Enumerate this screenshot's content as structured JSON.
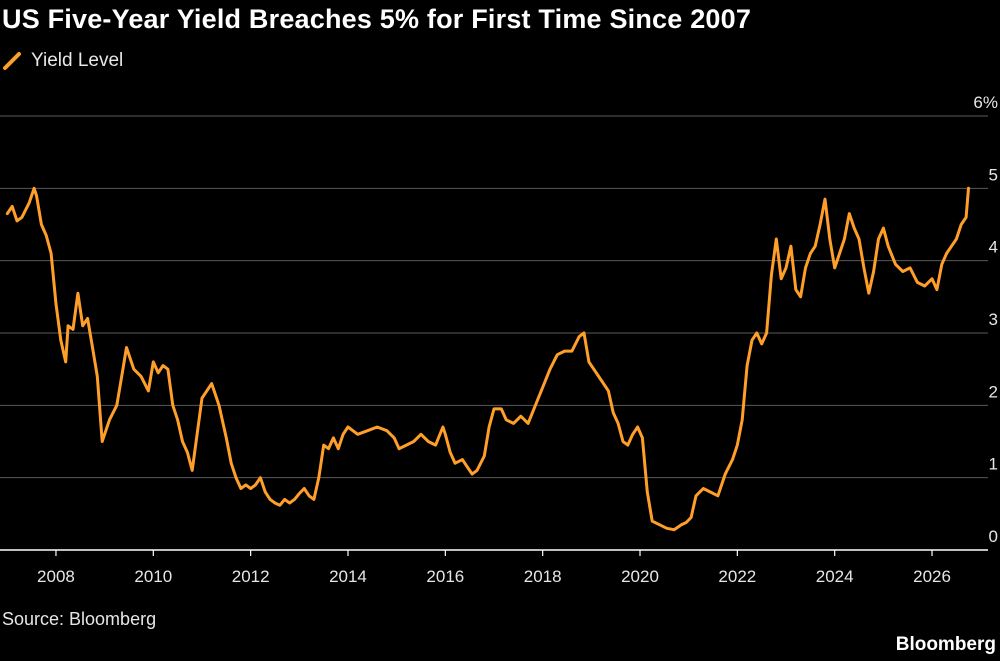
{
  "chart_data": {
    "type": "line",
    "title": "US Five-Year Yield Breaches 5% for First Time Since 2007",
    "series": [
      {
        "name": "Yield Level",
        "color": "#ff9f2a",
        "points": [
          [
            2007.0,
            4.65
          ],
          [
            2007.1,
            4.75
          ],
          [
            2007.2,
            4.55
          ],
          [
            2007.3,
            4.6
          ],
          [
            2007.45,
            4.8
          ],
          [
            2007.55,
            5.0
          ],
          [
            2007.6,
            4.9
          ],
          [
            2007.7,
            4.5
          ],
          [
            2007.8,
            4.35
          ],
          [
            2007.9,
            4.1
          ],
          [
            2008.0,
            3.4
          ],
          [
            2008.1,
            2.9
          ],
          [
            2008.2,
            2.6
          ],
          [
            2008.25,
            3.1
          ],
          [
            2008.35,
            3.05
          ],
          [
            2008.45,
            3.55
          ],
          [
            2008.55,
            3.1
          ],
          [
            2008.65,
            3.2
          ],
          [
            2008.75,
            2.8
          ],
          [
            2008.85,
            2.4
          ],
          [
            2008.95,
            1.5
          ],
          [
            2009.0,
            1.6
          ],
          [
            2009.1,
            1.8
          ],
          [
            2009.25,
            2.0
          ],
          [
            2009.35,
            2.4
          ],
          [
            2009.45,
            2.8
          ],
          [
            2009.6,
            2.5
          ],
          [
            2009.75,
            2.4
          ],
          [
            2009.9,
            2.2
          ],
          [
            2010.0,
            2.6
          ],
          [
            2010.1,
            2.45
          ],
          [
            2010.2,
            2.55
          ],
          [
            2010.3,
            2.5
          ],
          [
            2010.4,
            2.0
          ],
          [
            2010.5,
            1.8
          ],
          [
            2010.6,
            1.5
          ],
          [
            2010.7,
            1.35
          ],
          [
            2010.8,
            1.1
          ],
          [
            2010.9,
            1.6
          ],
          [
            2011.0,
            2.1
          ],
          [
            2011.1,
            2.2
          ],
          [
            2011.2,
            2.3
          ],
          [
            2011.35,
            2.0
          ],
          [
            2011.5,
            1.55
          ],
          [
            2011.6,
            1.2
          ],
          [
            2011.7,
            1.0
          ],
          [
            2011.8,
            0.85
          ],
          [
            2011.9,
            0.9
          ],
          [
            2012.0,
            0.85
          ],
          [
            2012.1,
            0.9
          ],
          [
            2012.2,
            1.0
          ],
          [
            2012.3,
            0.8
          ],
          [
            2012.4,
            0.7
          ],
          [
            2012.5,
            0.65
          ],
          [
            2012.6,
            0.62
          ],
          [
            2012.7,
            0.7
          ],
          [
            2012.8,
            0.65
          ],
          [
            2012.9,
            0.7
          ],
          [
            2013.0,
            0.78
          ],
          [
            2013.1,
            0.85
          ],
          [
            2013.2,
            0.75
          ],
          [
            2013.3,
            0.7
          ],
          [
            2013.4,
            1.0
          ],
          [
            2013.5,
            1.45
          ],
          [
            2013.6,
            1.4
          ],
          [
            2013.7,
            1.55
          ],
          [
            2013.8,
            1.4
          ],
          [
            2013.9,
            1.6
          ],
          [
            2014.0,
            1.7
          ],
          [
            2014.2,
            1.6
          ],
          [
            2014.4,
            1.65
          ],
          [
            2014.6,
            1.7
          ],
          [
            2014.8,
            1.65
          ],
          [
            2014.95,
            1.55
          ],
          [
            2015.05,
            1.4
          ],
          [
            2015.2,
            1.45
          ],
          [
            2015.35,
            1.5
          ],
          [
            2015.5,
            1.6
          ],
          [
            2015.65,
            1.5
          ],
          [
            2015.8,
            1.45
          ],
          [
            2015.95,
            1.7
          ],
          [
            2016.0,
            1.6
          ],
          [
            2016.1,
            1.35
          ],
          [
            2016.2,
            1.2
          ],
          [
            2016.35,
            1.25
          ],
          [
            2016.45,
            1.15
          ],
          [
            2016.55,
            1.05
          ],
          [
            2016.65,
            1.1
          ],
          [
            2016.8,
            1.3
          ],
          [
            2016.9,
            1.7
          ],
          [
            2017.0,
            1.95
          ],
          [
            2017.15,
            1.95
          ],
          [
            2017.25,
            1.8
          ],
          [
            2017.4,
            1.75
          ],
          [
            2017.55,
            1.85
          ],
          [
            2017.7,
            1.75
          ],
          [
            2017.85,
            2.0
          ],
          [
            2018.0,
            2.25
          ],
          [
            2018.15,
            2.5
          ],
          [
            2018.3,
            2.7
          ],
          [
            2018.45,
            2.75
          ],
          [
            2018.6,
            2.75
          ],
          [
            2018.75,
            2.95
          ],
          [
            2018.85,
            3.0
          ],
          [
            2018.95,
            2.6
          ],
          [
            2019.05,
            2.5
          ],
          [
            2019.2,
            2.35
          ],
          [
            2019.35,
            2.2
          ],
          [
            2019.45,
            1.9
          ],
          [
            2019.55,
            1.75
          ],
          [
            2019.65,
            1.5
          ],
          [
            2019.75,
            1.45
          ],
          [
            2019.85,
            1.6
          ],
          [
            2019.95,
            1.7
          ],
          [
            2020.05,
            1.55
          ],
          [
            2020.15,
            0.8
          ],
          [
            2020.25,
            0.4
          ],
          [
            2020.4,
            0.35
          ],
          [
            2020.55,
            0.3
          ],
          [
            2020.7,
            0.28
          ],
          [
            2020.85,
            0.35
          ],
          [
            2020.95,
            0.38
          ],
          [
            2021.05,
            0.45
          ],
          [
            2021.15,
            0.75
          ],
          [
            2021.3,
            0.85
          ],
          [
            2021.45,
            0.8
          ],
          [
            2021.6,
            0.75
          ],
          [
            2021.75,
            1.05
          ],
          [
            2021.9,
            1.25
          ],
          [
            2022.0,
            1.45
          ],
          [
            2022.1,
            1.8
          ],
          [
            2022.2,
            2.55
          ],
          [
            2022.3,
            2.9
          ],
          [
            2022.4,
            3.0
          ],
          [
            2022.5,
            2.85
          ],
          [
            2022.6,
            3.0
          ],
          [
            2022.7,
            3.8
          ],
          [
            2022.8,
            4.3
          ],
          [
            2022.9,
            3.75
          ],
          [
            2023.0,
            3.9
          ],
          [
            2023.1,
            4.2
          ],
          [
            2023.2,
            3.6
          ],
          [
            2023.3,
            3.5
          ],
          [
            2023.4,
            3.9
          ],
          [
            2023.5,
            4.1
          ],
          [
            2023.6,
            4.2
          ],
          [
            2023.7,
            4.5
          ],
          [
            2023.8,
            4.85
          ],
          [
            2023.9,
            4.3
          ],
          [
            2024.0,
            3.9
          ],
          [
            2024.1,
            4.1
          ],
          [
            2024.2,
            4.3
          ],
          [
            2024.3,
            4.65
          ],
          [
            2024.4,
            4.45
          ],
          [
            2024.5,
            4.3
          ],
          [
            2024.6,
            3.9
          ],
          [
            2024.7,
            3.55
          ],
          [
            2024.8,
            3.85
          ],
          [
            2024.9,
            4.3
          ],
          [
            2025.0,
            4.45
          ],
          [
            2025.1,
            4.2
          ],
          [
            2025.25,
            3.95
          ],
          [
            2025.4,
            3.85
          ],
          [
            2025.55,
            3.9
          ],
          [
            2025.7,
            3.7
          ],
          [
            2025.85,
            3.65
          ],
          [
            2026.0,
            3.75
          ],
          [
            2026.1,
            3.6
          ],
          [
            2026.2,
            3.95
          ],
          [
            2026.3,
            4.1
          ],
          [
            2026.4,
            4.2
          ],
          [
            2026.5,
            4.3
          ],
          [
            2026.6,
            4.5
          ],
          [
            2026.7,
            4.6
          ],
          [
            2026.75,
            5.0
          ]
        ]
      }
    ],
    "x_ticks": [
      "2008",
      "2010",
      "2012",
      "2014",
      "2016",
      "2018",
      "2020",
      "2022",
      "2024",
      "2026"
    ],
    "y_ticks": [
      "0",
      "1",
      "2",
      "3",
      "4",
      "5",
      "6%"
    ],
    "xlim": [
      2006.85,
      2027.15
    ],
    "ylim": [
      0,
      6
    ],
    "grid": true,
    "legend_position": "top-left"
  },
  "source_text": "Source: Bloomberg",
  "brand_text": "Bloomberg"
}
